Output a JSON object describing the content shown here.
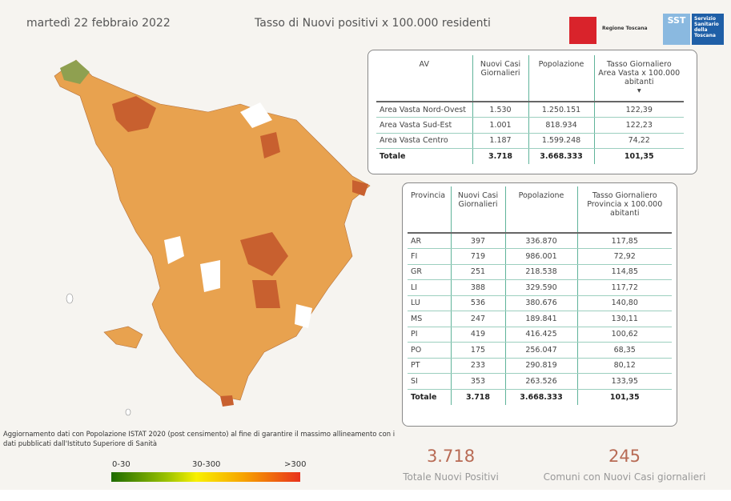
{
  "header": {
    "date": "martedì 22 febbraio 2022",
    "title": "Tasso di Nuovi positivi x 100.000 residenti"
  },
  "logos": {
    "regione": "Regione Toscana",
    "sst": "SST",
    "sst_full": "Servizio Sanitario della Toscana"
  },
  "av_table": {
    "columns": [
      "AV",
      "Nuovi Casi Giornalieri",
      "Popolazione",
      "Tasso Giornaliero Area Vasta x 100.000 abitanti"
    ],
    "rows": [
      [
        "Area Vasta Nord-Ovest",
        "1.530",
        "1.250.151",
        "122,39"
      ],
      [
        "Area Vasta Sud-Est",
        "1.001",
        "818.934",
        "122,23"
      ],
      [
        "Area Vasta Centro",
        "1.187",
        "1.599.248",
        "74,22"
      ]
    ],
    "total": [
      "Totale",
      "3.718",
      "3.668.333",
      "101,35"
    ]
  },
  "prov_table": {
    "columns": [
      "Provincia",
      "Nuovi Casi Giornalieri",
      "Popolazione",
      "Tasso Giornaliero Provincia x 100.000 abitanti"
    ],
    "rows": [
      [
        "AR",
        "397",
        "336.870",
        "117,85"
      ],
      [
        "FI",
        "719",
        "986.001",
        "72,92"
      ],
      [
        "GR",
        "251",
        "218.538",
        "114,85"
      ],
      [
        "LI",
        "388",
        "329.590",
        "117,72"
      ],
      [
        "LU",
        "536",
        "380.676",
        "140,80"
      ],
      [
        "MS",
        "247",
        "189.841",
        "130,11"
      ],
      [
        "PI",
        "419",
        "416.425",
        "100,62"
      ],
      [
        "PO",
        "175",
        "256.047",
        "68,35"
      ],
      [
        "PT",
        "233",
        "290.819",
        "80,12"
      ],
      [
        "SI",
        "353",
        "263.526",
        "133,95"
      ]
    ],
    "total": [
      "Totale",
      "3.718",
      "3.668.333",
      "101,35"
    ]
  },
  "note": "Aggiornamento dati con Popolazione ISTAT 2020 (post censimento) al fine di garantire il massimo allineamento con i dati pubblicati dall'Istituto Superiore di Sanità",
  "legend": {
    "labels": [
      "0-30",
      "30-300",
      ">300"
    ],
    "colors": [
      "#1e6b00",
      "#f8f000",
      "#e8321c"
    ]
  },
  "kpis": [
    {
      "value": "3.718",
      "label": "Totale Nuovi Positivi"
    },
    {
      "value": "245",
      "label": "Comuni con Nuovi Casi giornalieri"
    }
  ],
  "map_colors": {
    "base": "#e8a24f",
    "dark": "#c8602f",
    "low": "#8fa050",
    "none": "#ffffff"
  }
}
